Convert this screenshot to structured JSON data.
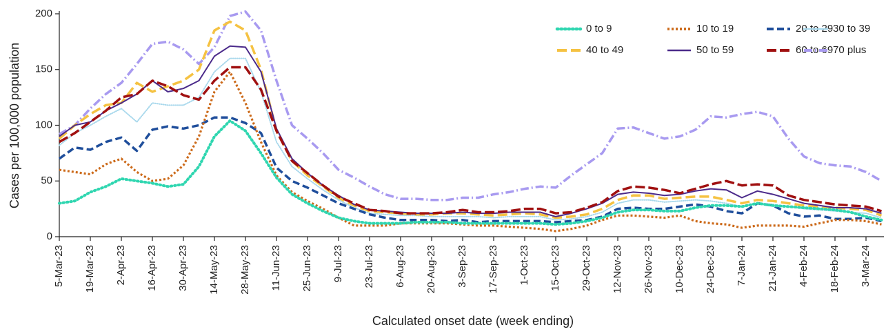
{
  "chart_data": {
    "type": "line",
    "x_label": "Calculated onset date (week ending)",
    "y_label": "Cases per 100,000 population",
    "categories": [
      "5-Mar-23",
      null,
      "19-Mar-23",
      null,
      "2-Apr-23",
      null,
      "16-Apr-23",
      null,
      "30-Apr-23",
      null,
      "14-May-23",
      null,
      "28-May-23",
      null,
      "11-Jun-23",
      null,
      "25-Jun-23",
      null,
      "9-Jul-23",
      null,
      "23-Jul-23",
      null,
      "6-Aug-23",
      null,
      "20-Aug-23",
      null,
      "3-Sep-23",
      null,
      "17-Sep-23",
      null,
      "1-Oct-23",
      null,
      "15-Oct-23",
      null,
      "29-Oct-23",
      null,
      "12-Nov-23",
      null,
      "26-Nov-23",
      null,
      "10-Dec-23",
      null,
      "24-Dec-23",
      null,
      "7-Jan-24",
      null,
      "21-Jan-24",
      null,
      "4-Feb-24",
      null,
      "18-Feb-24",
      null,
      "3-Mar-24",
      null
    ],
    "ylim": [
      0,
      200
    ],
    "yticks": [
      0,
      50,
      100,
      150,
      200
    ],
    "grid": false,
    "series": [
      {
        "name": "0 to 9",
        "color": "#2fd6b0",
        "values": [
          30,
          32,
          40,
          45,
          52,
          50,
          48,
          45,
          47,
          63,
          90,
          104,
          95,
          75,
          53,
          38,
          30,
          23,
          17,
          14,
          12,
          12,
          12,
          13,
          13,
          13,
          12,
          12,
          12,
          12,
          12,
          12,
          11,
          12,
          14,
          17,
          22,
          24,
          24,
          23,
          23,
          26,
          28,
          28,
          27,
          30,
          28,
          27,
          26,
          25,
          24,
          22,
          18,
          15
        ]
      },
      {
        "name": "10 to 19",
        "color": "#cc6a1a",
        "values": [
          60,
          58,
          56,
          65,
          70,
          58,
          50,
          52,
          64,
          90,
          130,
          148,
          120,
          85,
          55,
          40,
          32,
          25,
          17,
          10,
          10,
          10,
          12,
          12,
          12,
          12,
          11,
          10,
          10,
          9,
          8,
          7,
          5,
          7,
          10,
          15,
          19,
          19,
          18,
          17,
          19,
          14,
          12,
          11,
          8,
          10,
          10,
          10,
          9,
          12,
          15,
          15,
          14,
          11
        ]
      },
      {
        "name": "20 to 29",
        "color": "#1f4e9b",
        "values": [
          70,
          80,
          78,
          85,
          89,
          77,
          96,
          99,
          97,
          100,
          107,
          107,
          102,
          93,
          62,
          50,
          44,
          37,
          30,
          25,
          20,
          17,
          15,
          15,
          15,
          14,
          15,
          13,
          14,
          14,
          14,
          14,
          13,
          14,
          15,
          18,
          25,
          26,
          25,
          25,
          27,
          29,
          27,
          23,
          21,
          30,
          28,
          21,
          18,
          19,
          16,
          16,
          17,
          14
        ]
      },
      {
        "name": "30 to 39",
        "color": "#a8d8ec",
        "values": [
          82,
          93,
          100,
          108,
          115,
          103,
          120,
          118,
          118,
          125,
          148,
          160,
          160,
          130,
          85,
          63,
          52,
          42,
          33,
          26,
          21,
          20,
          19,
          19,
          18,
          18,
          18,
          18,
          17,
          18,
          18,
          18,
          15,
          16,
          18,
          22,
          30,
          33,
          33,
          31,
          32,
          33,
          32,
          30,
          27,
          30,
          29,
          27,
          25,
          24,
          23,
          22,
          21,
          17
        ]
      },
      {
        "name": "40 to 49",
        "color": "#f5c242",
        "values": [
          88,
          100,
          110,
          118,
          120,
          138,
          130,
          135,
          140,
          150,
          185,
          193,
          185,
          150,
          95,
          68,
          55,
          45,
          35,
          28,
          23,
          22,
          21,
          20,
          20,
          21,
          21,
          20,
          19,
          20,
          21,
          20,
          17,
          18,
          20,
          25,
          33,
          37,
          37,
          34,
          35,
          36,
          36,
          33,
          30,
          33,
          32,
          30,
          28,
          27,
          26,
          25,
          24,
          19
        ]
      },
      {
        "name": "50 to 59",
        "color": "#4b2a8a",
        "values": [
          90,
          100,
          103,
          113,
          120,
          128,
          140,
          130,
          133,
          140,
          162,
          171,
          170,
          148,
          97,
          70,
          57,
          46,
          37,
          29,
          24,
          23,
          22,
          21,
          21,
          21,
          22,
          21,
          21,
          22,
          22,
          22,
          18,
          21,
          25,
          30,
          38,
          40,
          39,
          37,
          38,
          41,
          43,
          42,
          35,
          41,
          38,
          34,
          30,
          28,
          26,
          26,
          25,
          21
        ]
      },
      {
        "name": "60 to 69",
        "color": "#a01010",
        "values": [
          85,
          93,
          103,
          113,
          125,
          128,
          140,
          135,
          127,
          123,
          140,
          152,
          152,
          132,
          95,
          68,
          57,
          46,
          36,
          30,
          24,
          23,
          21,
          21,
          21,
          22,
          24,
          22,
          22,
          23,
          25,
          25,
          21,
          22,
          26,
          31,
          41,
          45,
          44,
          42,
          39,
          43,
          47,
          50,
          46,
          47,
          46,
          37,
          33,
          31,
          29,
          28,
          27,
          23
        ]
      },
      {
        "name": "70 plus",
        "color": "#a89af0",
        "values": [
          92,
          100,
          115,
          128,
          138,
          155,
          173,
          175,
          168,
          155,
          170,
          198,
          202,
          185,
          140,
          100,
          88,
          75,
          60,
          53,
          45,
          38,
          34,
          34,
          33,
          33,
          35,
          35,
          38,
          40,
          43,
          45,
          44,
          55,
          65,
          75,
          97,
          98,
          93,
          88,
          90,
          96,
          108,
          107,
          110,
          112,
          108,
          88,
          72,
          66,
          64,
          63,
          58,
          50
        ]
      }
    ]
  }
}
